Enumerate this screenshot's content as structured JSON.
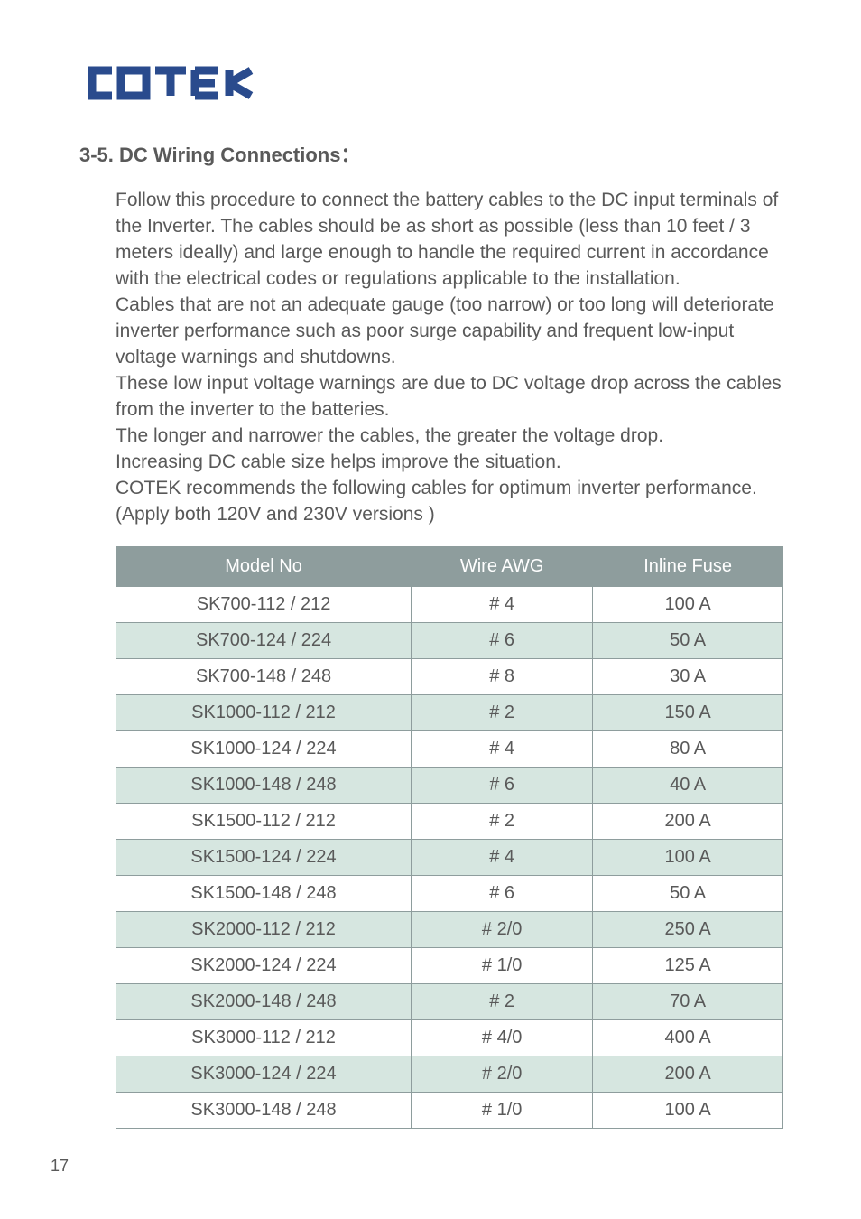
{
  "logo": {
    "brand": "COTEK",
    "stroke_color": "#2a4b8d",
    "stroke_width": 10
  },
  "section_title": "3-5. DC Wiring Connections：",
  "paragraphs": [
    "Follow this procedure to connect the battery cables to the DC input terminals of the Inverter.    The cables should be as short as possible (less than 10 feet / 3 meters ideally) and large enough to handle the required current in accordance with the electrical codes or regulations applicable to the installation.",
    "Cables that are not an adequate gauge (too narrow) or too long will deteriorate inverter performance such as poor surge capability and frequent low-input voltage warnings and shutdowns.",
    "These low input voltage warnings are due to DC voltage drop across the cables from the inverter to the batteries.",
    "The longer and narrower the cables, the greater the voltage drop.",
    "Increasing DC cable size helps improve the situation.",
    "COTEK recommends the following cables for optimum inverter performance.",
    "(Apply both 120V and 230V versions )"
  ],
  "table": {
    "columns": [
      "Model No",
      "Wire AWG",
      "Inline Fuse"
    ],
    "rows": [
      {
        "model": "SK700-112 / 212",
        "awg": "# 4",
        "fuse": "100 A",
        "alt": false
      },
      {
        "model": "SK700-124 / 224",
        "awg": "# 6",
        "fuse": "50 A",
        "alt": true
      },
      {
        "model": "SK700-148 / 248",
        "awg": "# 8",
        "fuse": "30 A",
        "alt": false
      },
      {
        "model": "SK1000-112 / 212",
        "awg": "# 2",
        "fuse": "150 A",
        "alt": true
      },
      {
        "model": "SK1000-124 / 224",
        "awg": "# 4",
        "fuse": "80 A",
        "alt": false
      },
      {
        "model": "SK1000-148 / 248",
        "awg": "# 6",
        "fuse": "40 A",
        "alt": true
      },
      {
        "model": "SK1500-112 / 212",
        "awg": "# 2",
        "fuse": "200 A",
        "alt": false
      },
      {
        "model": "SK1500-124 / 224",
        "awg": "# 4",
        "fuse": "100 A",
        "alt": true
      },
      {
        "model": "SK1500-148 / 248",
        "awg": "# 6",
        "fuse": "50 A",
        "alt": false
      },
      {
        "model": "SK2000-112 / 212",
        "awg": "# 2/0",
        "fuse": "250 A",
        "alt": true
      },
      {
        "model": "SK2000-124 / 224",
        "awg": "# 1/0",
        "fuse": "125 A",
        "alt": false
      },
      {
        "model": "SK2000-148 / 248",
        "awg": "# 2",
        "fuse": "70 A",
        "alt": true
      },
      {
        "model": "SK3000-112 / 212",
        "awg": "# 4/0",
        "fuse": "400 A",
        "alt": false
      },
      {
        "model": "SK3000-124 / 224",
        "awg": "# 2/0",
        "fuse": "200 A",
        "alt": true
      },
      {
        "model": "SK3000-148 / 248",
        "awg": "# 1/0",
        "fuse": "100 A",
        "alt": false
      }
    ],
    "header_bg": "#8e9d9d",
    "header_text_color": "#ffffff",
    "alt_row_bg": "#d6e6e0",
    "border_color": "#8e9d9d",
    "cell_text_color": "#595959",
    "font_size": 20
  },
  "page_number": "17",
  "colors": {
    "text": "#595959",
    "background": "#ffffff"
  }
}
